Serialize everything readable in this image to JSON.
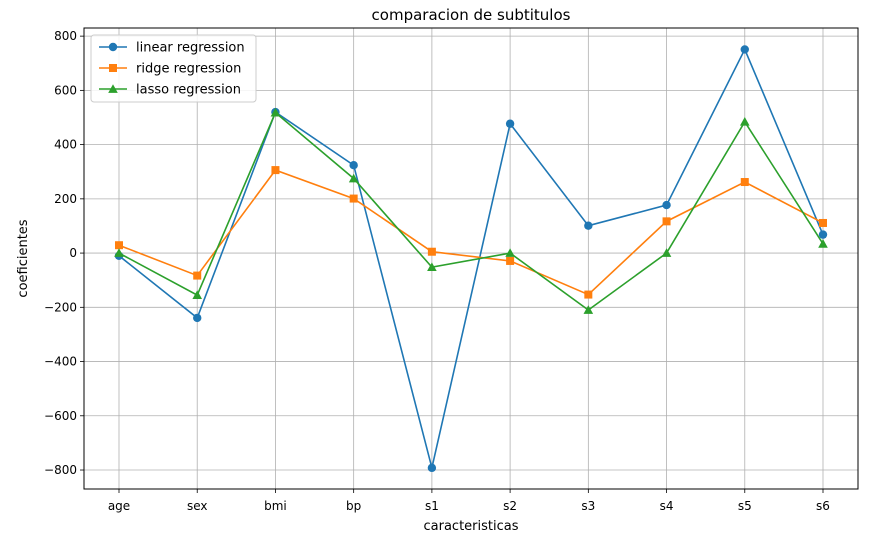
{
  "chart_data": {
    "type": "line",
    "title": "comparacion de subtitulos",
    "xlabel": "caracteristicas",
    "ylabel": "coeficientes",
    "categories": [
      "age",
      "sex",
      "bmi",
      "bp",
      "s1",
      "s2",
      "s3",
      "s4",
      "s5",
      "s6"
    ],
    "ylim": [
      -870,
      830
    ],
    "yticks": [
      -800,
      -600,
      -400,
      -200,
      0,
      200,
      400,
      600,
      800
    ],
    "grid": true,
    "legend_position": "upper-left",
    "series": [
      {
        "name": "linear regression",
        "color": "#1f77b4",
        "marker": "circle",
        "values": [
          -10,
          -239,
          520,
          324,
          -792,
          477,
          101,
          177,
          751,
          68
        ]
      },
      {
        "name": "ridge regression",
        "color": "#ff7f0e",
        "marker": "square",
        "values": [
          29,
          -83,
          306,
          201,
          5,
          -29,
          -153,
          117,
          262,
          111
        ]
      },
      {
        "name": "lasso regression",
        "color": "#2ca02c",
        "marker": "triangle",
        "values": [
          0,
          -155,
          518,
          275,
          -52,
          0,
          -210,
          0,
          484,
          34
        ]
      }
    ]
  }
}
